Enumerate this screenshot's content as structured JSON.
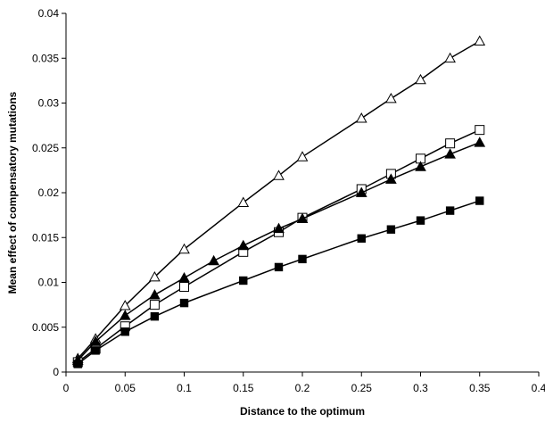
{
  "chart_data": {
    "type": "line",
    "title": "",
    "xlabel": "Distance to the optimum",
    "ylabel": "Mean effect of compensatory mutations",
    "xlim": [
      0,
      0.4
    ],
    "ylim": [
      0,
      0.04
    ],
    "xticks": [
      "0",
      "0.05",
      "0.1",
      "0.15",
      "0.2",
      "0.25",
      "0.3",
      "0.35",
      "0.4"
    ],
    "yticks": [
      "0",
      "0.005",
      "0.01",
      "0.015",
      "0.02",
      "0.025",
      "0.03",
      "0.035",
      "0.04"
    ],
    "grid": false,
    "legend": "none",
    "series": [
      {
        "marker": "open-triangle",
        "color": "#000000",
        "x": [
          0.01,
          0.025,
          0.05,
          0.075,
          0.1,
          0.15,
          0.18,
          0.2,
          0.25,
          0.275,
          0.3,
          0.325,
          0.35
        ],
        "y": [
          0.0015,
          0.0037,
          0.0074,
          0.0106,
          0.0137,
          0.0189,
          0.0219,
          0.024,
          0.0283,
          0.0305,
          0.0326,
          0.035,
          0.0369
        ]
      },
      {
        "marker": "open-square",
        "color": "#000000",
        "x": [
          0.01,
          0.025,
          0.05,
          0.075,
          0.1,
          0.15,
          0.18,
          0.2,
          0.25,
          0.275,
          0.3,
          0.325,
          0.35
        ],
        "y": [
          0.0011,
          0.0026,
          0.0051,
          0.0075,
          0.0095,
          0.0134,
          0.0156,
          0.0172,
          0.0204,
          0.0221,
          0.0238,
          0.0255,
          0.027
        ]
      },
      {
        "marker": "filled-triangle",
        "color": "#000000",
        "x": [
          0.01,
          0.025,
          0.05,
          0.075,
          0.1,
          0.125,
          0.15,
          0.18,
          0.2,
          0.25,
          0.275,
          0.3,
          0.325,
          0.35
        ],
        "y": [
          0.0013,
          0.0034,
          0.0063,
          0.0086,
          0.0105,
          0.0124,
          0.0141,
          0.016,
          0.0171,
          0.02,
          0.0215,
          0.0229,
          0.0243,
          0.0256
        ]
      },
      {
        "marker": "filled-square",
        "color": "#000000",
        "x": [
          0.01,
          0.025,
          0.05,
          0.075,
          0.1,
          0.15,
          0.18,
          0.2,
          0.25,
          0.275,
          0.3,
          0.325,
          0.35
        ],
        "y": [
          0.0009,
          0.0024,
          0.0045,
          0.0062,
          0.0077,
          0.0102,
          0.0117,
          0.0126,
          0.0149,
          0.0159,
          0.0169,
          0.018,
          0.0191
        ]
      }
    ]
  }
}
